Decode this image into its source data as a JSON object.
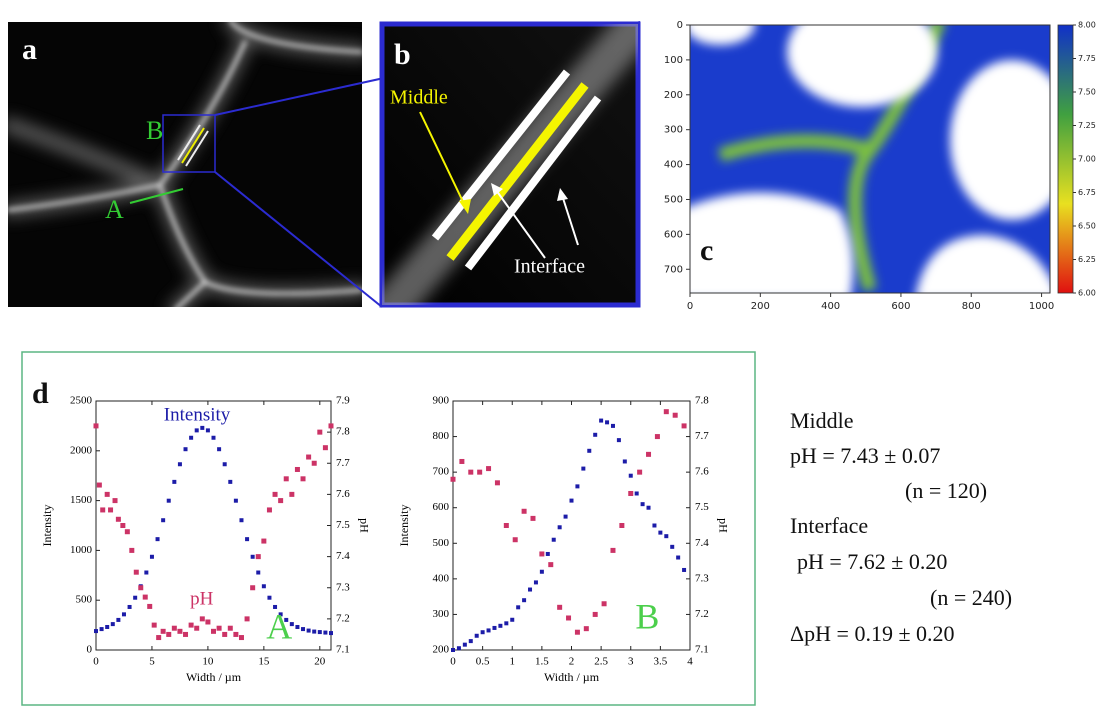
{
  "panels": {
    "a": {
      "label": "a",
      "marker_a": "A",
      "marker_b": "B"
    },
    "b": {
      "label": "b",
      "middle": "Middle",
      "interface": "Interface"
    },
    "c": {
      "label": "c"
    },
    "d": {
      "label": "d"
    }
  },
  "summary": {
    "middle_title": "Middle",
    "middle_ph": "pH = 7.43 ± 0.07",
    "middle_n": "(n = 120)",
    "interface_title": "Interface",
    "interface_ph": "pH = 7.62 ± 0.20",
    "interface_n": "(n = 240)",
    "delta_ph": "ΔpH = 0.19 ± 0.20"
  },
  "chart_data": [
    {
      "type": "image",
      "xlim": [
        0,
        1024
      ],
      "ylim": [
        0,
        768
      ],
      "y_inverted": true,
      "xticks": [
        0,
        200,
        400,
        600,
        800,
        1000
      ],
      "yticks": [
        0,
        100,
        200,
        300,
        400,
        500,
        600,
        700
      ],
      "colorbar": {
        "lim": [
          6,
          8
        ],
        "colors": [
          "#e01010",
          "#e8e020",
          "#40a040",
          "#1030c8"
        ],
        "ticks": [
          {
            "value": 6,
            "label": "6.00"
          },
          {
            "value": 6.25,
            "label": "6.25"
          },
          {
            "value": 6.5,
            "label": "6.50"
          },
          {
            "value": 6.75,
            "label": "6.75"
          },
          {
            "value": 7,
            "label": "7.00"
          },
          {
            "value": 7.25,
            "label": "7.25"
          },
          {
            "value": 7.5,
            "label": "7.50"
          },
          {
            "value": 7.75,
            "label": "7.75"
          },
          {
            "value": 8,
            "label": "8.00"
          }
        ]
      }
    },
    {
      "type": "scatter",
      "xlabel": "Width / µm",
      "ylabel": "Intensity",
      "y2label": "pH",
      "annotation": "A",
      "xlim": [
        0,
        21
      ],
      "xticks": [
        0,
        5,
        10,
        15,
        20
      ],
      "ylim": [
        0,
        2500
      ],
      "yticks": [
        0,
        500,
        1000,
        1500,
        2000,
        2500
      ],
      "y2lim": [
        7.1,
        7.9
      ],
      "y2ticks": [
        7.1,
        7.2,
        7.3,
        7.4,
        7.5,
        7.6,
        7.7,
        7.8,
        7.9
      ],
      "series": [
        {
          "name": "Intensity",
          "color": "#1c1ca8",
          "x": [
            0,
            0.5,
            1,
            1.5,
            2,
            2.5,
            3,
            3.5,
            4,
            4.5,
            5,
            5.5,
            6,
            6.5,
            7,
            7.5,
            8,
            8.5,
            9,
            9.5,
            10,
            10.5,
            11,
            11.5,
            12,
            12.5,
            13,
            13.5,
            14,
            14.5,
            15,
            15.5,
            16,
            16.5,
            17,
            17.5,
            18,
            18.5,
            19,
            19.5,
            20,
            20.5,
            21
          ],
          "values": [
            190,
            210,
            231,
            260,
            302,
            358,
            432,
            525,
            640,
            778,
            936,
            1113,
            1303,
            1499,
            1688,
            1865,
            2016,
            2131,
            2205,
            2230,
            2205,
            2131,
            2016,
            1865,
            1688,
            1499,
            1303,
            1113,
            936,
            778,
            640,
            525,
            432,
            358,
            302,
            260,
            231,
            210,
            195,
            185,
            180,
            175,
            170
          ]
        },
        {
          "name": "pH",
          "color": "#cc3366",
          "axis": "y2",
          "x": [
            0,
            0.3,
            0.6,
            1,
            1.3,
            1.7,
            2,
            2.4,
            2.8,
            3.2,
            3.6,
            4,
            4.4,
            4.8,
            5.2,
            5.6,
            6,
            6.5,
            7,
            7.5,
            8,
            8.5,
            9,
            9.5,
            10,
            10.5,
            11,
            11.5,
            12,
            12.5,
            13,
            13.5,
            14,
            14.5,
            15,
            15.5,
            16,
            16.5,
            17,
            17.5,
            18,
            18.5,
            19,
            19.5,
            20,
            20.5,
            21
          ],
          "values": [
            7.82,
            7.63,
            7.55,
            7.6,
            7.55,
            7.58,
            7.52,
            7.5,
            7.48,
            7.42,
            7.35,
            7.3,
            7.27,
            7.24,
            7.18,
            7.14,
            7.16,
            7.15,
            7.17,
            7.16,
            7.15,
            7.18,
            7.17,
            7.2,
            7.19,
            7.16,
            7.17,
            7.15,
            7.17,
            7.15,
            7.14,
            7.2,
            7.3,
            7.4,
            7.45,
            7.55,
            7.6,
            7.58,
            7.65,
            7.6,
            7.68,
            7.65,
            7.72,
            7.7,
            7.8,
            7.75,
            7.82
          ]
        }
      ]
    },
    {
      "type": "scatter",
      "xlabel": "Width / µm",
      "ylabel": "Intensity",
      "y2label": "pH",
      "annotation": "B",
      "xlim": [
        0,
        4
      ],
      "xticks": [
        0,
        0.5,
        1,
        1.5,
        2,
        2.5,
        3,
        3.5,
        4
      ],
      "ylim": [
        200,
        900
      ],
      "yticks": [
        200,
        300,
        400,
        500,
        600,
        700,
        800,
        900
      ],
      "y2lim": [
        7.1,
        7.8
      ],
      "y2ticks": [
        7.1,
        7.2,
        7.3,
        7.4,
        7.5,
        7.6,
        7.7,
        7.8
      ],
      "series": [
        {
          "color": "#1c1ca8",
          "x": [
            0,
            0.1,
            0.2,
            0.3,
            0.4,
            0.5,
            0.6,
            0.7,
            0.8,
            0.9,
            1,
            1.1,
            1.2,
            1.3,
            1.4,
            1.5,
            1.6,
            1.7,
            1.8,
            1.9,
            2,
            2.1,
            2.2,
            2.3,
            2.4,
            2.5,
            2.6,
            2.7,
            2.8,
            2.9,
            3,
            3.1,
            3.2,
            3.3,
            3.4,
            3.5,
            3.6,
            3.7,
            3.8,
            3.9
          ],
          "values": [
            200,
            205,
            215,
            225,
            240,
            250,
            255,
            262,
            268,
            275,
            285,
            320,
            340,
            370,
            390,
            420,
            470,
            510,
            545,
            575,
            620,
            660,
            710,
            760,
            805,
            845,
            840,
            830,
            790,
            730,
            690,
            640,
            610,
            600,
            550,
            530,
            520,
            490,
            460,
            425
          ]
        },
        {
          "color": "#cc3366",
          "axis": "y2",
          "x": [
            0,
            0.15,
            0.3,
            0.45,
            0.6,
            0.75,
            0.9,
            1.05,
            1.2,
            1.35,
            1.5,
            1.65,
            1.8,
            1.95,
            2.1,
            2.25,
            2.4,
            2.55,
            2.7,
            2.85,
            3,
            3.15,
            3.3,
            3.45,
            3.6,
            3.75,
            3.9
          ],
          "values": [
            7.58,
            7.63,
            7.6,
            7.6,
            7.61,
            7.57,
            7.45,
            7.41,
            7.49,
            7.47,
            7.37,
            7.34,
            7.22,
            7.19,
            7.15,
            7.16,
            7.2,
            7.23,
            7.38,
            7.45,
            7.54,
            7.6,
            7.65,
            7.7,
            7.77,
            7.76,
            7.73
          ]
        }
      ]
    }
  ]
}
